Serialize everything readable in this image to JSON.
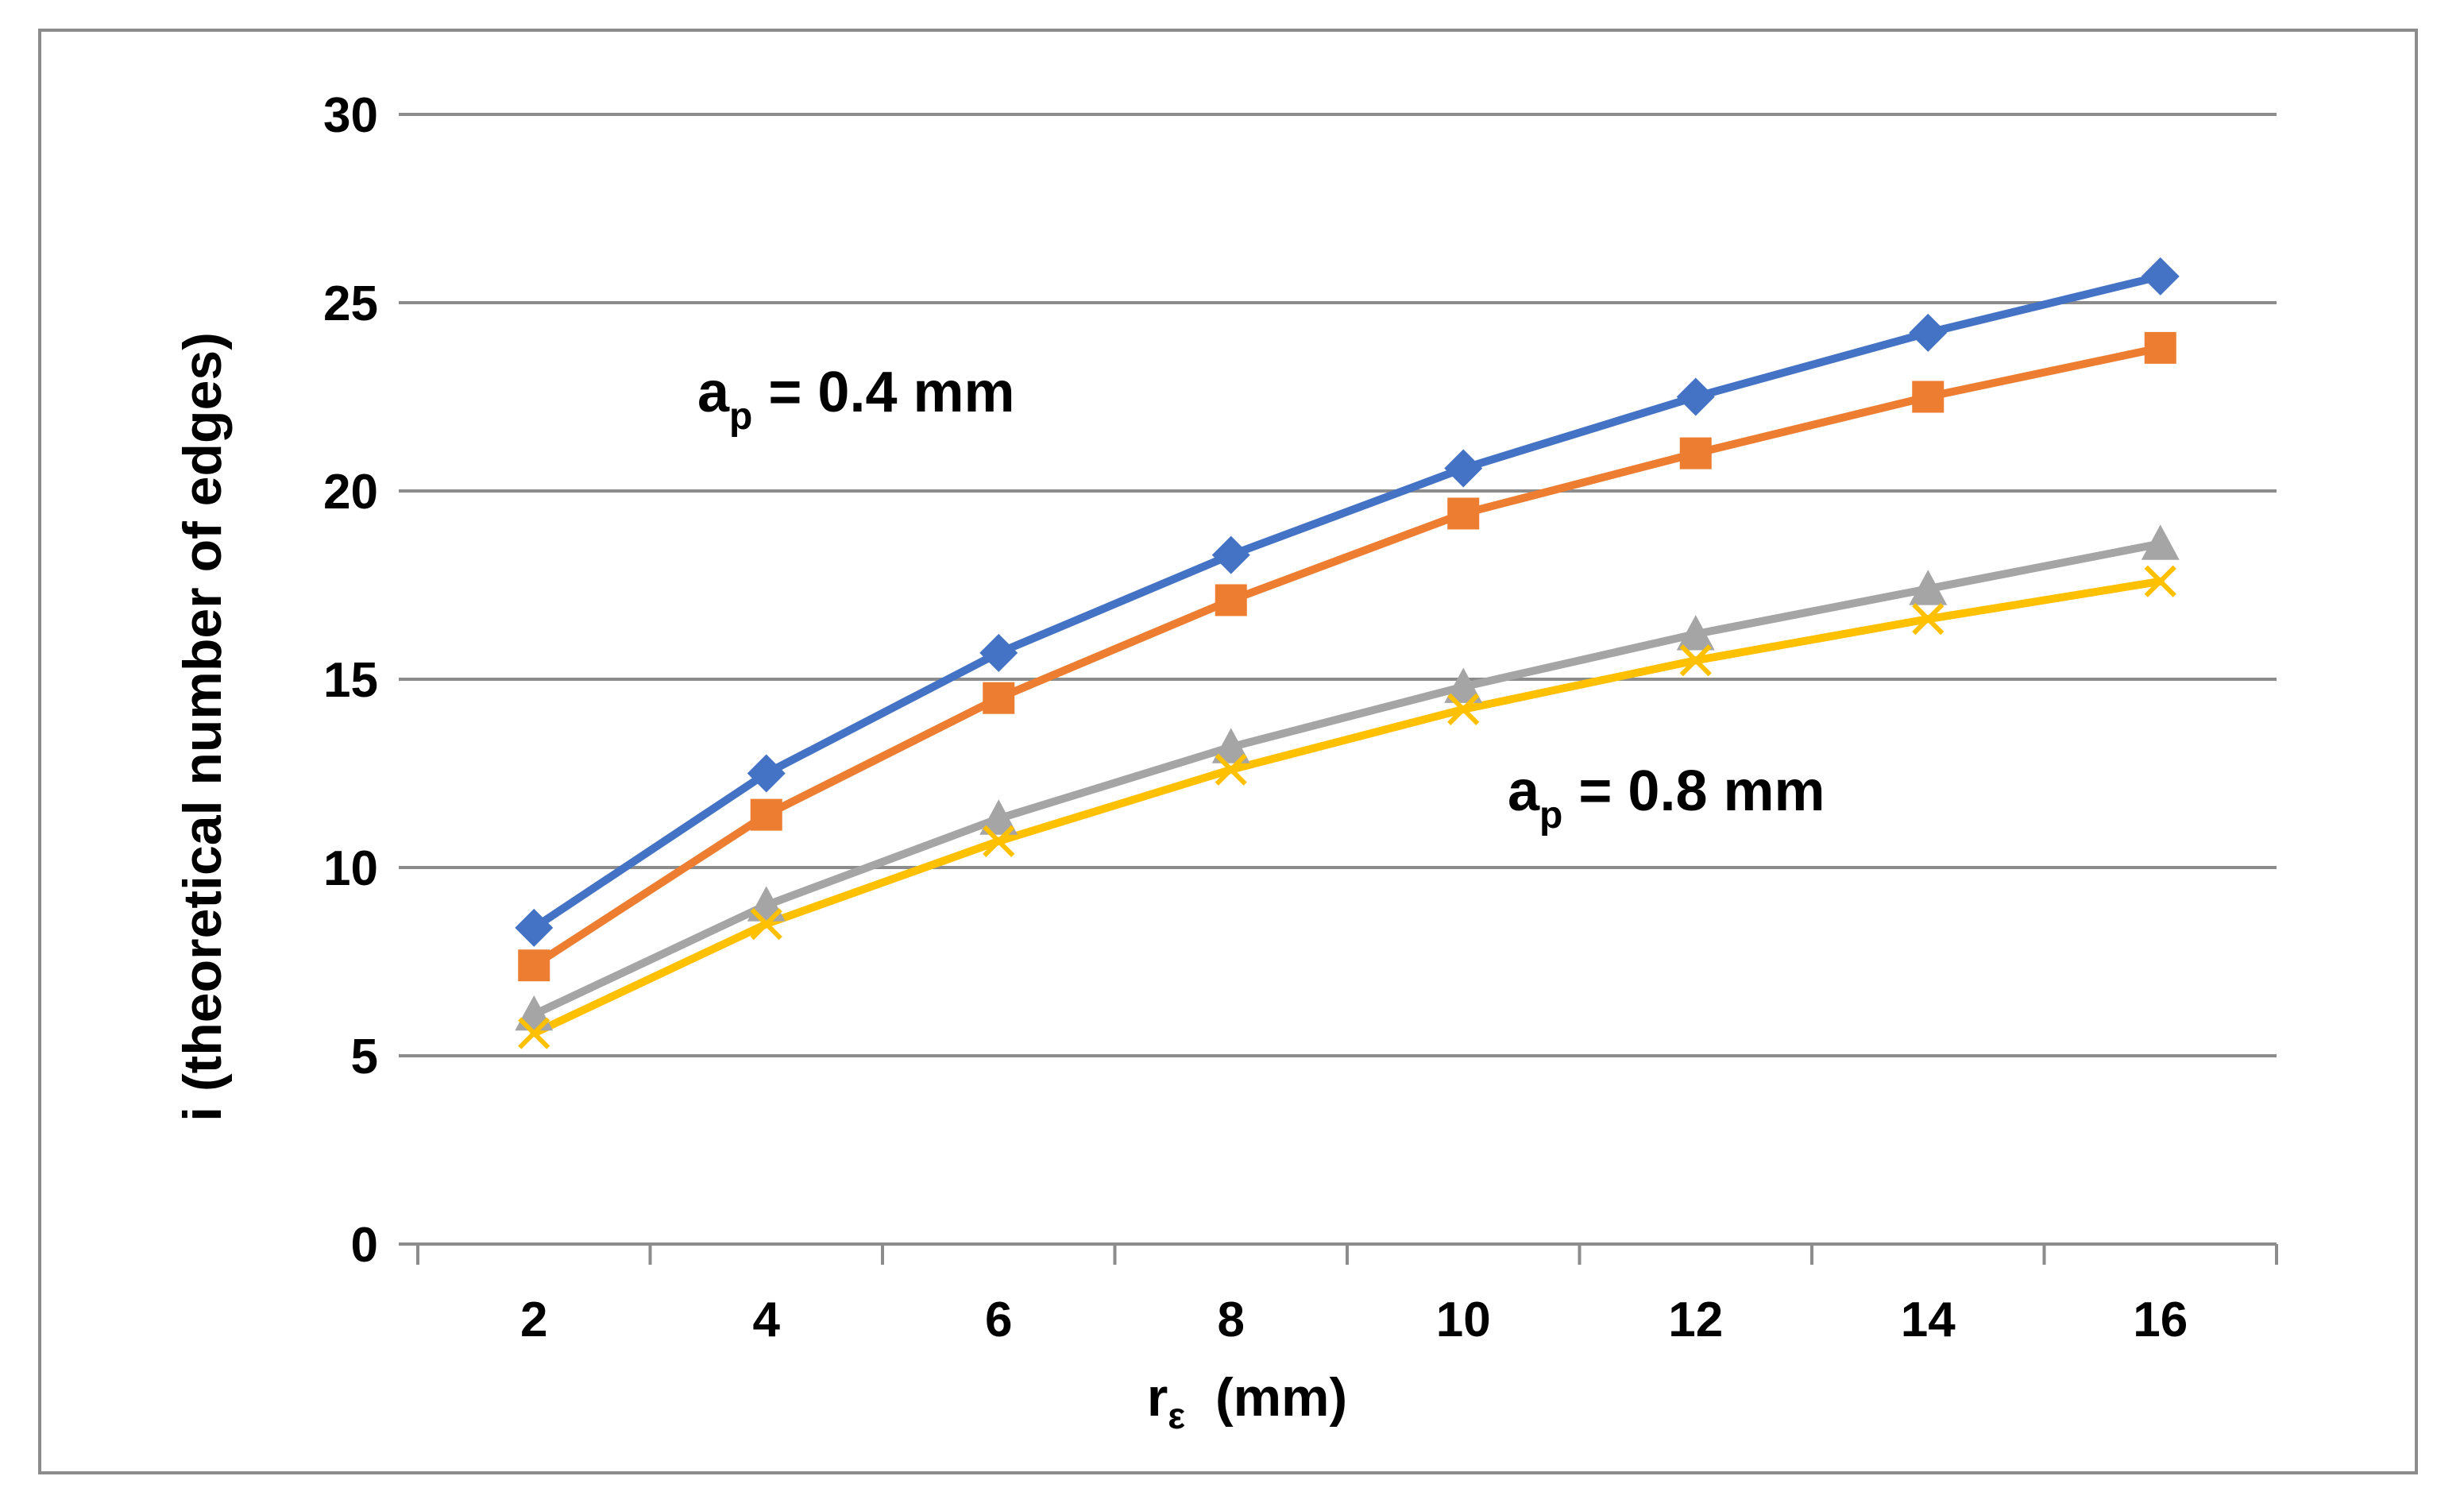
{
  "chart_data": {
    "type": "line",
    "title": "",
    "xlabel": {
      "main": "r",
      "sub": "ε",
      "unit": "(mm)"
    },
    "ylabel": "i  (theoretical number of edges)",
    "categories": [
      "2",
      "4",
      "6",
      "8",
      "10",
      "12",
      "14",
      "16"
    ],
    "ylim": [
      0,
      30
    ],
    "yticks": [
      "0",
      "5",
      "10",
      "15",
      "20",
      "25",
      "30"
    ],
    "grid": true,
    "legend": "none",
    "series": [
      {
        "name": "series-1",
        "marker": "diamond",
        "color": "#4472C4",
        "values": [
          8.4,
          12.5,
          15.7,
          18.3,
          20.6,
          22.5,
          24.2,
          25.7
        ]
      },
      {
        "name": "series-2",
        "marker": "square",
        "color": "#ED7D31",
        "values": [
          7.4,
          11.4,
          14.5,
          17.1,
          19.4,
          21.0,
          22.5,
          23.8
        ]
      },
      {
        "name": "series-3",
        "marker": "triangle",
        "color": "#A5A5A5",
        "values": [
          6.1,
          9.0,
          11.3,
          13.2,
          14.8,
          16.2,
          17.4,
          18.6
        ]
      },
      {
        "name": "series-4",
        "marker": "x",
        "color": "#FFC000",
        "values": [
          5.6,
          8.5,
          10.7,
          12.6,
          14.2,
          15.5,
          16.6,
          17.6
        ]
      }
    ],
    "annotations": [
      {
        "name": "annotation-ap-04",
        "base": "a",
        "sub": "p",
        "rest": " = 0.4 mm"
      },
      {
        "name": "annotation-ap-08",
        "base": "a",
        "sub": "p",
        "rest": " = 0.8 mm"
      }
    ]
  }
}
